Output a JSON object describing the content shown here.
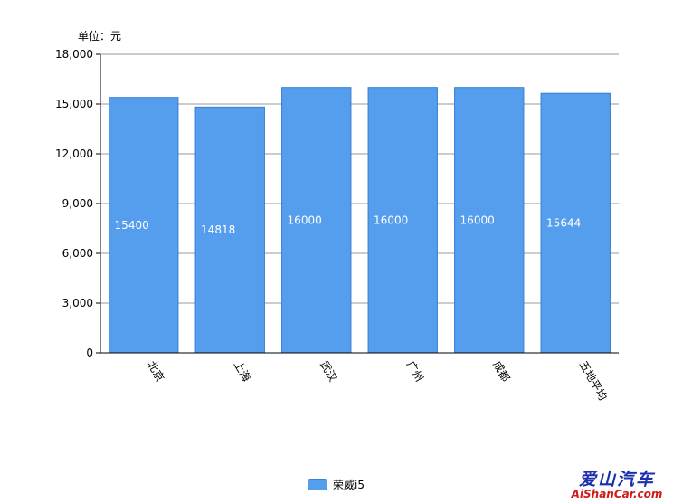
{
  "unit_label": "单位：元",
  "legend": {
    "label": "荣威i5",
    "color": "#559ded"
  },
  "watermark": {
    "cn": "爱山汽车",
    "en": "AiShanCar.com"
  },
  "chart_data": {
    "type": "bar",
    "categories": [
      "北京",
      "上海",
      "武汉",
      "广州",
      "成都",
      "五地平均"
    ],
    "series": [
      {
        "name": "荣威i5",
        "values": [
          15400,
          14818,
          16000,
          16000,
          16000,
          15644
        ],
        "color": "#559ded"
      }
    ],
    "data_labels": [
      "15400",
      "14818",
      "16000",
      "16000",
      "16000",
      "15644"
    ],
    "ylim": [
      0,
      18000
    ],
    "yticks": [
      0,
      3000,
      6000,
      9000,
      12000,
      15000,
      18000
    ],
    "ytick_labels": [
      "0",
      "3,000",
      "6,000",
      "9,000",
      "12,000",
      "15,000",
      "18,000"
    ],
    "grid": true,
    "legend_position": "bottom-center"
  }
}
